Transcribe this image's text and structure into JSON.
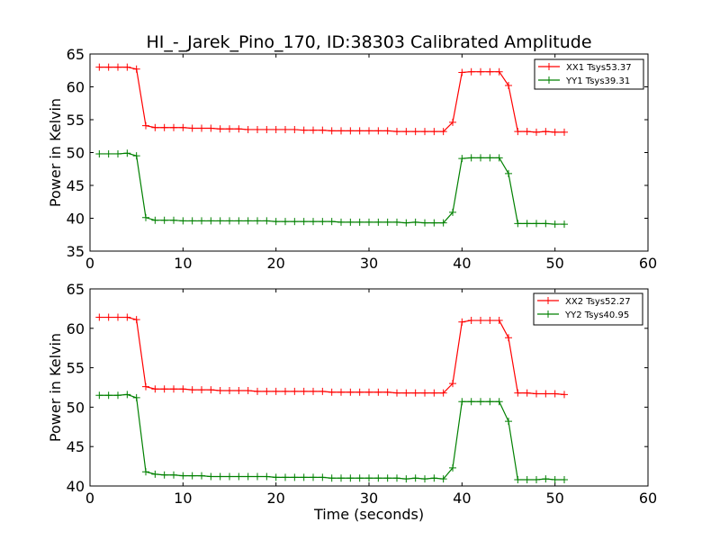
{
  "chart_data": [
    {
      "type": "line",
      "title": "HI_-_Jarek_Pino_170, ID:38303 Calibrated Amplitude",
      "xlabel": "",
      "ylabel": "Power in Kelvin",
      "xlim": [
        0,
        60
      ],
      "ylim": [
        35,
        65
      ],
      "xticks": [
        0,
        10,
        20,
        30,
        40,
        50,
        60
      ],
      "yticks": [
        35,
        40,
        45,
        50,
        55,
        60,
        65
      ],
      "legend_position": "top-right",
      "x": [
        1,
        2,
        3,
        4,
        5,
        6,
        7,
        8,
        9,
        10,
        11,
        12,
        13,
        14,
        15,
        16,
        17,
        18,
        19,
        20,
        21,
        22,
        23,
        24,
        25,
        26,
        27,
        28,
        29,
        30,
        31,
        32,
        33,
        34,
        35,
        36,
        37,
        38,
        39,
        40,
        41,
        42,
        43,
        44,
        45,
        46,
        47,
        48,
        49,
        50,
        51
      ],
      "series": [
        {
          "name": "XX1 Tsys53.37",
          "color": "#ff0000",
          "values": [
            63.0,
            63.0,
            63.0,
            63.0,
            62.7,
            54.1,
            53.8,
            53.8,
            53.8,
            53.8,
            53.7,
            53.7,
            53.7,
            53.6,
            53.6,
            53.6,
            53.5,
            53.5,
            53.5,
            53.5,
            53.5,
            53.5,
            53.4,
            53.4,
            53.4,
            53.3,
            53.3,
            53.3,
            53.3,
            53.3,
            53.3,
            53.3,
            53.2,
            53.2,
            53.2,
            53.2,
            53.2,
            53.2,
            54.6,
            62.2,
            62.3,
            62.3,
            62.3,
            62.3,
            60.2,
            53.2,
            53.2,
            53.1,
            53.2,
            53.1,
            53.1
          ]
        },
        {
          "name": "YY1 Tsys39.31",
          "color": "#008000",
          "values": [
            49.8,
            49.8,
            49.8,
            49.9,
            49.5,
            40.1,
            39.7,
            39.7,
            39.7,
            39.6,
            39.6,
            39.6,
            39.6,
            39.6,
            39.6,
            39.6,
            39.6,
            39.6,
            39.6,
            39.5,
            39.5,
            39.5,
            39.5,
            39.5,
            39.5,
            39.5,
            39.4,
            39.4,
            39.4,
            39.4,
            39.4,
            39.4,
            39.4,
            39.3,
            39.4,
            39.3,
            39.3,
            39.3,
            40.9,
            49.1,
            49.2,
            49.2,
            49.2,
            49.2,
            46.8,
            39.2,
            39.2,
            39.2,
            39.2,
            39.1,
            39.1
          ]
        }
      ]
    },
    {
      "type": "line",
      "title": "",
      "xlabel": "Time (seconds)",
      "ylabel": "Power in Kelvin",
      "xlim": [
        0,
        60
      ],
      "ylim": [
        40,
        65
      ],
      "xticks": [
        0,
        10,
        20,
        30,
        40,
        50,
        60
      ],
      "yticks": [
        40,
        45,
        50,
        55,
        60,
        65
      ],
      "legend_position": "top-right",
      "x": [
        1,
        2,
        3,
        4,
        5,
        6,
        7,
        8,
        9,
        10,
        11,
        12,
        13,
        14,
        15,
        16,
        17,
        18,
        19,
        20,
        21,
        22,
        23,
        24,
        25,
        26,
        27,
        28,
        29,
        30,
        31,
        32,
        33,
        34,
        35,
        36,
        37,
        38,
        39,
        40,
        41,
        42,
        43,
        44,
        45,
        46,
        47,
        48,
        49,
        50,
        51
      ],
      "series": [
        {
          "name": "XX2 Tsys52.27",
          "color": "#ff0000",
          "values": [
            61.4,
            61.4,
            61.4,
            61.4,
            61.1,
            52.6,
            52.3,
            52.3,
            52.3,
            52.3,
            52.2,
            52.2,
            52.2,
            52.1,
            52.1,
            52.1,
            52.1,
            52.0,
            52.0,
            52.0,
            52.0,
            52.0,
            52.0,
            52.0,
            52.0,
            51.9,
            51.9,
            51.9,
            51.9,
            51.9,
            51.9,
            51.9,
            51.8,
            51.8,
            51.8,
            51.8,
            51.8,
            51.8,
            53.0,
            60.8,
            61.0,
            61.0,
            61.0,
            61.0,
            58.8,
            51.8,
            51.8,
            51.7,
            51.7,
            51.7,
            51.6
          ]
        },
        {
          "name": "YY2 Tsys40.95",
          "color": "#008000",
          "values": [
            51.5,
            51.5,
            51.5,
            51.6,
            51.2,
            41.8,
            41.5,
            41.4,
            41.4,
            41.3,
            41.3,
            41.3,
            41.2,
            41.2,
            41.2,
            41.2,
            41.2,
            41.2,
            41.2,
            41.1,
            41.1,
            41.1,
            41.1,
            41.1,
            41.1,
            41.0,
            41.0,
            41.0,
            41.0,
            41.0,
            41.0,
            41.0,
            41.0,
            40.9,
            41.0,
            40.9,
            41.0,
            40.9,
            42.3,
            50.7,
            50.7,
            50.7,
            50.7,
            50.7,
            48.2,
            40.8,
            40.8,
            40.8,
            40.9,
            40.8,
            40.8
          ]
        }
      ]
    }
  ]
}
